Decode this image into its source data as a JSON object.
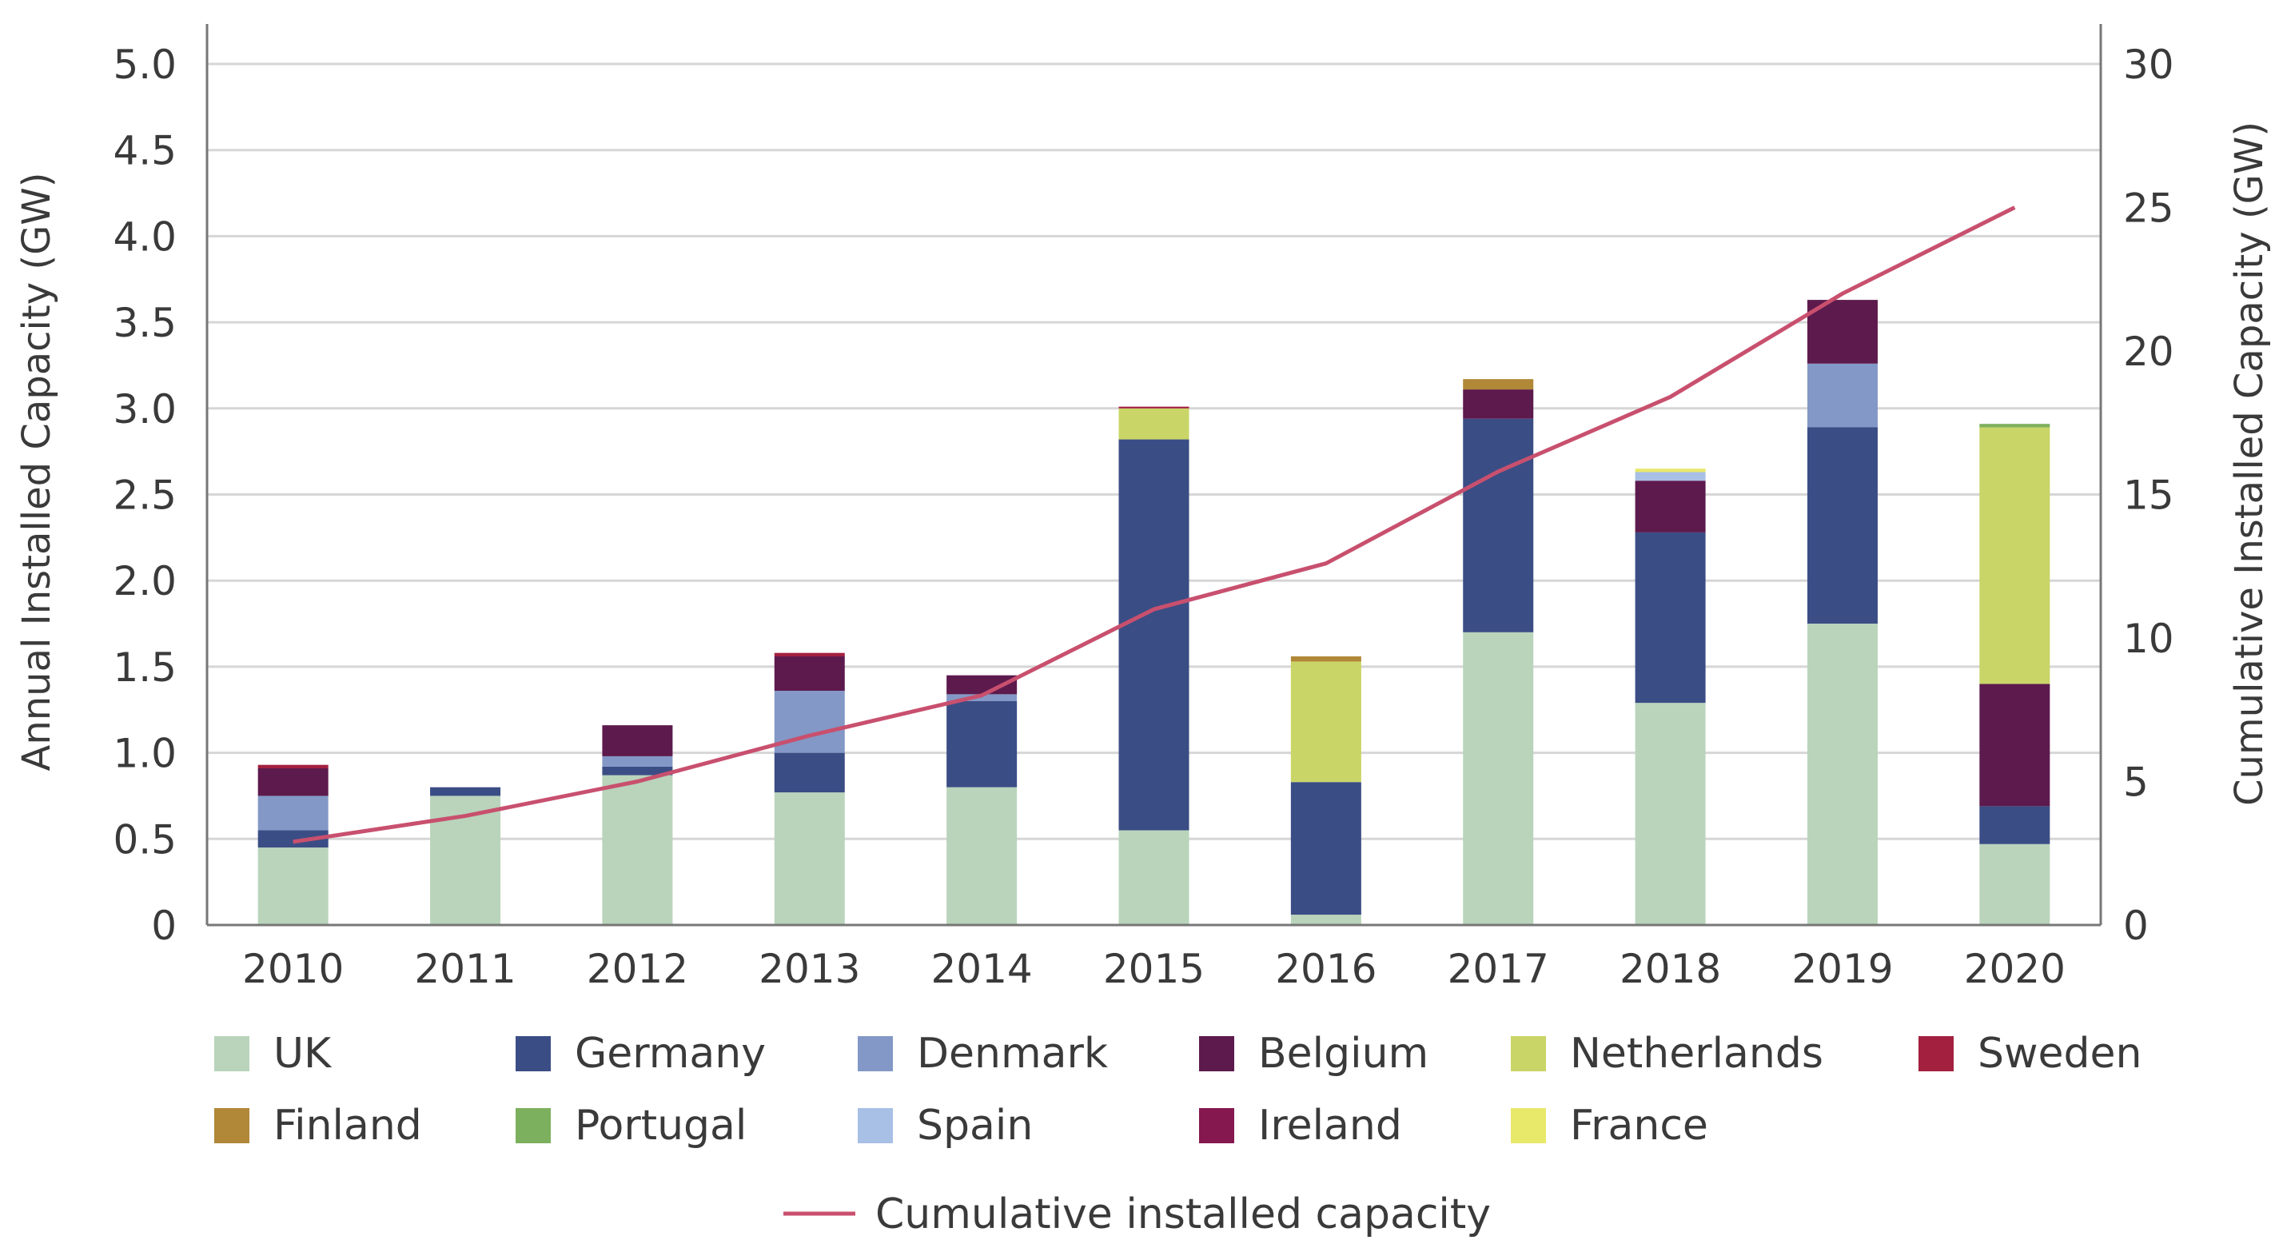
{
  "chart_data": {
    "type": "bar",
    "stacked": true,
    "categories": [
      "2010",
      "2011",
      "2012",
      "2013",
      "2014",
      "2015",
      "2016",
      "2017",
      "2018",
      "2019",
      "2020"
    ],
    "ylabel": "Annual Installed Capacity (GW)",
    "ylabel_right": "Cumulative Installed Capacity (GW)",
    "ylim": [
      0,
      5.0
    ],
    "yticks": [
      "0",
      "0.5",
      "1.0",
      "1.5",
      "2.0",
      "2.5",
      "3.0",
      "3.5",
      "4.0",
      "4.5",
      "5.0"
    ],
    "ylim_right": [
      0,
      30
    ],
    "yticks_right": [
      "0",
      "5",
      "10",
      "15",
      "20",
      "25",
      "30"
    ],
    "grid": true,
    "legend_position": "bottom",
    "series": [
      {
        "name": "UK",
        "color": "#b9d4bb",
        "values": [
          0.45,
          0.75,
          0.87,
          0.77,
          0.8,
          0.55,
          0.06,
          1.7,
          1.29,
          1.75,
          0.47
        ]
      },
      {
        "name": "Germany",
        "color": "#3b4d85",
        "values": [
          0.1,
          0.05,
          0.05,
          0.23,
          0.5,
          2.27,
          0.77,
          1.24,
          0.99,
          1.14,
          0.22
        ]
      },
      {
        "name": "Denmark",
        "color": "#8398c6",
        "values": [
          0.2,
          0.0,
          0.06,
          0.36,
          0.04,
          0.0,
          0.0,
          0.0,
          0.0,
          0.37,
          0.0
        ]
      },
      {
        "name": "Belgium",
        "color": "#5d1a4d",
        "values": [
          0.16,
          0.0,
          0.18,
          0.2,
          0.11,
          0.0,
          0.0,
          0.17,
          0.3,
          0.37,
          0.71
        ]
      },
      {
        "name": "Netherlands",
        "color": "#c9d566",
        "values": [
          0.0,
          0.0,
          0.0,
          0.0,
          0.0,
          0.18,
          0.7,
          0.0,
          0.0,
          0.0,
          1.49
        ]
      },
      {
        "name": "Sweden",
        "color": "#a3203f",
        "values": [
          0.02,
          0.0,
          0.0,
          0.02,
          0.0,
          0.01,
          0.0,
          0.0,
          0.0,
          0.0,
          0.0
        ]
      },
      {
        "name": "Finland",
        "color": "#b08838",
        "values": [
          0.0,
          0.0,
          0.0,
          0.0,
          0.0,
          0.0,
          0.03,
          0.06,
          0.0,
          0.0,
          0.0
        ]
      },
      {
        "name": "Portugal",
        "color": "#7db05e",
        "values": [
          0.0,
          0.0,
          0.0,
          0.0,
          0.0,
          0.0,
          0.0,
          0.0,
          0.0,
          0.0,
          0.02
        ]
      },
      {
        "name": "Spain",
        "color": "#a8bfe6",
        "values": [
          0.0,
          0.0,
          0.0,
          0.0,
          0.0,
          0.0,
          0.0,
          0.0,
          0.05,
          0.0,
          0.0
        ]
      },
      {
        "name": "Ireland",
        "color": "#85184f",
        "values": [
          0.0,
          0.0,
          0.0,
          0.0,
          0.0,
          0.0,
          0.0,
          0.0,
          0.0,
          0.0,
          0.0
        ]
      },
      {
        "name": "France",
        "color": "#e8e86a",
        "values": [
          0.0,
          0.0,
          0.0,
          0.0,
          0.0,
          0.0,
          0.0,
          0.0,
          0.02,
          0.0,
          0.0
        ]
      }
    ],
    "line_series": {
      "name": "Cumulative installed capacity",
      "axis": "right",
      "color": "#c8506e",
      "values": [
        2.9,
        3.8,
        5.0,
        6.6,
        8.0,
        11.0,
        12.6,
        15.8,
        18.4,
        22.0,
        25.0
      ]
    }
  }
}
